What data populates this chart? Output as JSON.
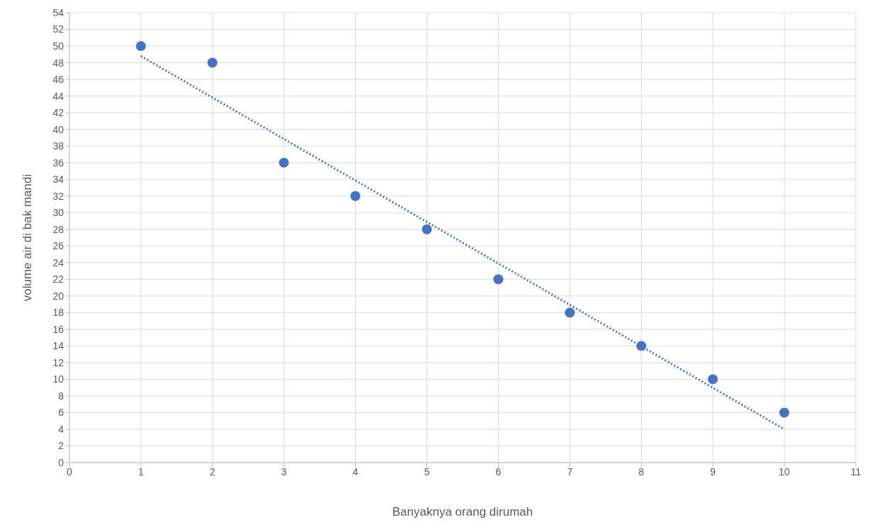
{
  "chart_data": {
    "type": "line",
    "xlabel": "Banyaknya orang dirumah",
    "ylabel": "volume air di bak mandi",
    "xlim": [
      0,
      11
    ],
    "xticks": [
      0,
      1,
      2,
      3,
      4,
      5,
      6,
      7,
      8,
      9,
      10,
      11
    ],
    "ylim": [
      0,
      54
    ],
    "yticks": [
      0,
      2,
      4,
      6,
      8,
      10,
      12,
      14,
      16,
      18,
      20,
      22,
      24,
      26,
      28,
      30,
      32,
      34,
      36,
      38,
      40,
      42,
      44,
      46,
      48,
      50,
      52,
      54
    ],
    "grid": true,
    "series": [
      {
        "type": "scatter",
        "color": "#4472c4",
        "marker": "circle",
        "x": [
          1,
          2,
          3,
          4,
          5,
          6,
          7,
          8,
          9,
          10
        ],
        "values": [
          50,
          48,
          36,
          32,
          28,
          22,
          18,
          14,
          10,
          6
        ]
      },
      {
        "color": "#4472c4",
        "line_style": "dotted",
        "x": [
          1,
          10
        ],
        "values": [
          48.8,
          4.0
        ]
      }
    ]
  }
}
